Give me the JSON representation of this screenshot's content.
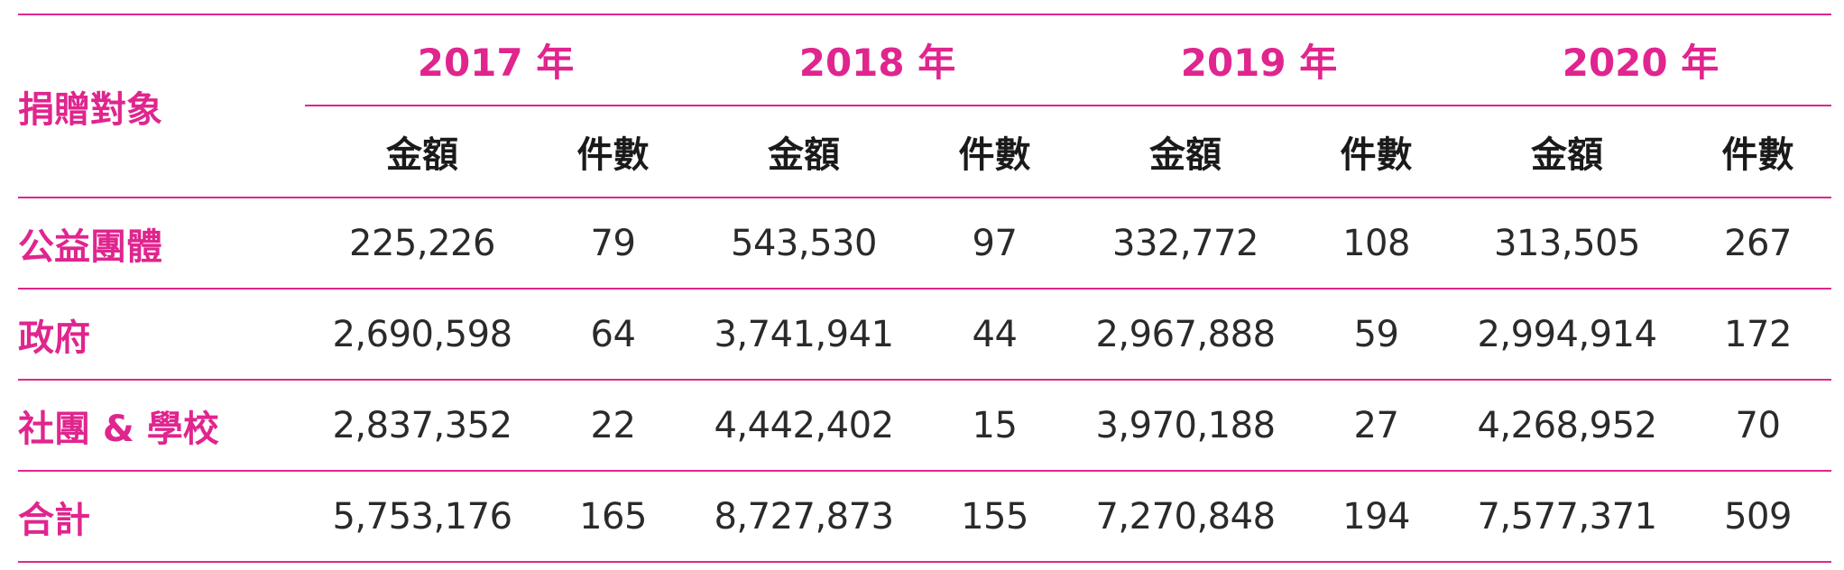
{
  "header": {
    "corner_label": "捐贈對象",
    "years": [
      "2017 年",
      "2018 年",
      "2019 年",
      "2020 年"
    ],
    "amount_label": "金額",
    "count_label": "件數"
  },
  "rows": [
    {
      "label": "公益團體",
      "values": [
        "225,226",
        "79",
        "543,530",
        "97",
        "332,772",
        "108",
        "313,505",
        "267"
      ]
    },
    {
      "label": "政府",
      "values": [
        "2,690,598",
        "64",
        "3,741,941",
        "44",
        "2,967,888",
        "59",
        "2,994,914",
        "172"
      ]
    },
    {
      "label": "社團 & 學校",
      "values": [
        "2,837,352",
        "22",
        "4,442,402",
        "15",
        "3,970,188",
        "27",
        "4,268,952",
        "70"
      ]
    },
    {
      "label": "合計",
      "values": [
        "5,753,176",
        "165",
        "8,727,873",
        "155",
        "7,270,848",
        "194",
        "7,577,371",
        "509"
      ]
    }
  ],
  "colors": {
    "accent": "#e0258e",
    "text": "#2a2a2a"
  }
}
